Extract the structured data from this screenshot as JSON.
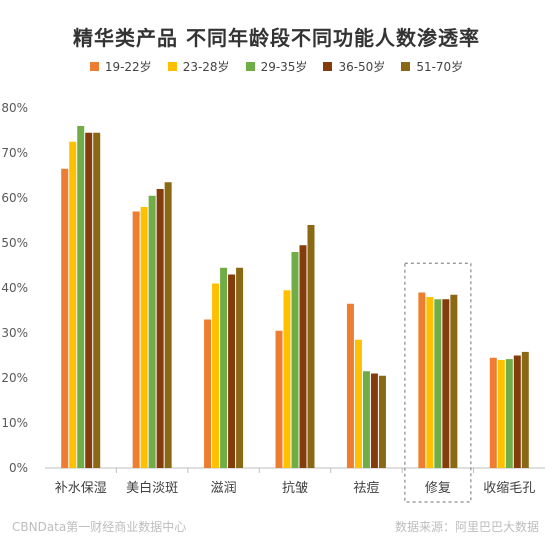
{
  "chart_data": {
    "type": "bar",
    "title": "精华类产品 不同年龄段不同功能人数渗透率",
    "categories": [
      "补水保湿",
      "美白淡斑",
      "滋润",
      "抗皱",
      "祛痘",
      "修复",
      "收缩毛孔"
    ],
    "series": [
      {
        "name": "19-22岁",
        "color": "#ED7D31",
        "values": [
          66.5,
          57.0,
          33.0,
          30.5,
          36.5,
          39.0,
          24.5
        ]
      },
      {
        "name": "23-28岁",
        "color": "#FFC000",
        "values": [
          72.5,
          58.0,
          41.0,
          39.5,
          28.5,
          38.0,
          24.0
        ]
      },
      {
        "name": "29-35岁",
        "color": "#70AD47",
        "values": [
          76.0,
          60.5,
          44.5,
          48.0,
          21.5,
          37.5,
          24.2
        ]
      },
      {
        "name": "36-50岁",
        "color": "#843C0C",
        "values": [
          74.5,
          62.0,
          43.0,
          49.5,
          21.0,
          37.5,
          25.0
        ]
      },
      {
        "name": "51-70岁",
        "color": "#8B6914",
        "values": [
          74.5,
          63.5,
          44.5,
          54.0,
          20.5,
          38.5,
          25.8
        ]
      }
    ],
    "ylim": [
      0,
      80
    ],
    "yticks": [
      "0%",
      "10%",
      "20%",
      "30%",
      "40%",
      "50%",
      "60%",
      "70%",
      "80%"
    ],
    "grid": false,
    "legend_position": "top",
    "highlight_category": "修复"
  },
  "footer": {
    "left": "CBNData第一财经商业数据中心",
    "right": "数据来源：阿里巴巴大数据"
  }
}
